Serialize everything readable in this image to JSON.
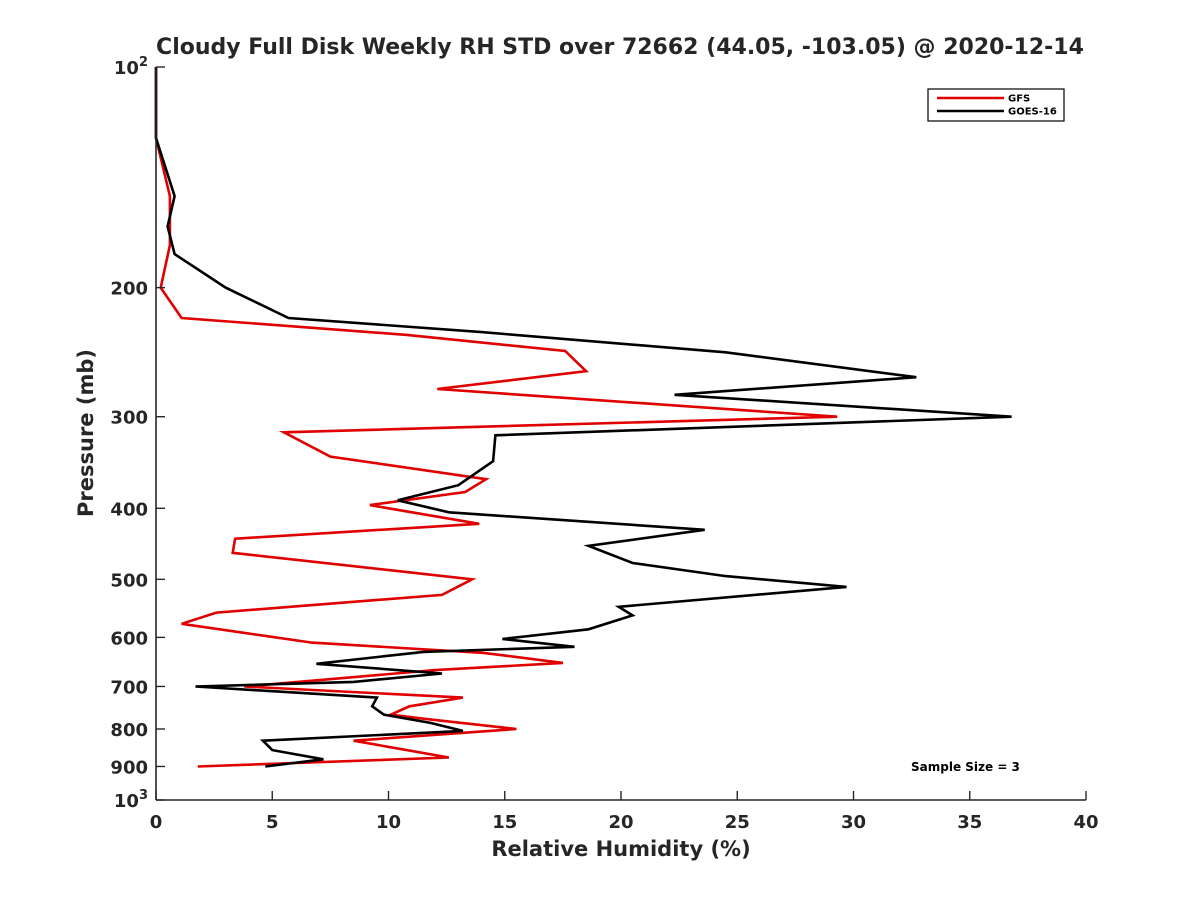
{
  "chart_data": {
    "type": "line",
    "title": "Cloudy Full Disk Weekly RH STD over 72662 (44.05, -103.05) @ 2020-12-14",
    "xlabel": "Relative Humidity (%)",
    "ylabel": "Pressure (mb)",
    "xlim": [
      0,
      40
    ],
    "ylim": [
      100,
      1000
    ],
    "y_scale": "log",
    "y_reversed": true,
    "grid": false,
    "legend_position": "top-right",
    "x_ticks": [
      0,
      5,
      10,
      15,
      20,
      25,
      30,
      35,
      40
    ],
    "x_tick_labels": [
      "0",
      "5",
      "10",
      "15",
      "20",
      "25",
      "30",
      "35",
      "40"
    ],
    "y_ticks": [
      {
        "value": 100,
        "base": "10",
        "sup": "2"
      },
      {
        "value": 200,
        "label": "200"
      },
      {
        "value": 300,
        "label": "300"
      },
      {
        "value": 400,
        "label": "400"
      },
      {
        "value": 500,
        "label": "500"
      },
      {
        "value": 600,
        "label": "600"
      },
      {
        "value": 700,
        "label": "700"
      },
      {
        "value": 800,
        "label": "800"
      },
      {
        "value": 900,
        "label": "900"
      },
      {
        "value": 1000,
        "base": "10",
        "sup": "3"
      }
    ],
    "series": [
      {
        "name": "GFS",
        "color": "#e00000",
        "points": [
          [
            0.0,
            100
          ],
          [
            0.0,
            125
          ],
          [
            0.6,
            150
          ],
          [
            0.6,
            175
          ],
          [
            0.2,
            200
          ],
          [
            1.1,
            220
          ],
          [
            10.8,
            232
          ],
          [
            17.6,
            244
          ],
          [
            18.5,
            260
          ],
          [
            12.1,
            275
          ],
          [
            29.3,
            300
          ],
          [
            5.5,
            315
          ],
          [
            7.5,
            340
          ],
          [
            14.2,
            365
          ],
          [
            13.3,
            380
          ],
          [
            9.2,
            396
          ],
          [
            13.9,
            420
          ],
          [
            3.4,
            440
          ],
          [
            3.3,
            460
          ],
          [
            13.6,
            500
          ],
          [
            12.3,
            525
          ],
          [
            2.6,
            555
          ],
          [
            1.1,
            575
          ],
          [
            6.7,
            610
          ],
          [
            14.1,
            630
          ],
          [
            17.5,
            650
          ],
          [
            12.0,
            665
          ],
          [
            3.8,
            700
          ],
          [
            13.2,
            725
          ],
          [
            10.9,
            745
          ],
          [
            10.1,
            765
          ],
          [
            11.6,
            775
          ],
          [
            15.5,
            800
          ],
          [
            8.5,
            830
          ],
          [
            12.6,
            875
          ],
          [
            1.8,
            900
          ]
        ]
      },
      {
        "name": "GOES-16",
        "color": "#000000",
        "points": [
          [
            0.0,
            100
          ],
          [
            0.0,
            125
          ],
          [
            0.8,
            150
          ],
          [
            0.5,
            165
          ],
          [
            0.8,
            180
          ],
          [
            3.0,
            200
          ],
          [
            5.7,
            220
          ],
          [
            14.0,
            230
          ],
          [
            24.5,
            245
          ],
          [
            32.7,
            265
          ],
          [
            22.3,
            280
          ],
          [
            36.8,
            300
          ],
          [
            14.6,
            318
          ],
          [
            14.5,
            345
          ],
          [
            13.0,
            372
          ],
          [
            10.4,
            390
          ],
          [
            12.6,
            405
          ],
          [
            23.6,
            428
          ],
          [
            18.6,
            450
          ],
          [
            20.5,
            475
          ],
          [
            24.5,
            495
          ],
          [
            29.7,
            512
          ],
          [
            19.9,
            545
          ],
          [
            20.5,
            560
          ],
          [
            18.6,
            585
          ],
          [
            14.9,
            603
          ],
          [
            18.0,
            618
          ],
          [
            11.5,
            628
          ],
          [
            6.9,
            652
          ],
          [
            12.3,
            672
          ],
          [
            8.5,
            690
          ],
          [
            1.7,
            700
          ],
          [
            9.5,
            725
          ],
          [
            9.3,
            745
          ],
          [
            9.8,
            765
          ],
          [
            11.8,
            785
          ],
          [
            13.2,
            805
          ],
          [
            4.6,
            830
          ],
          [
            5.0,
            855
          ],
          [
            7.2,
            880
          ],
          [
            4.7,
            900
          ]
        ]
      }
    ],
    "annotation": "Sample Size = 3"
  }
}
